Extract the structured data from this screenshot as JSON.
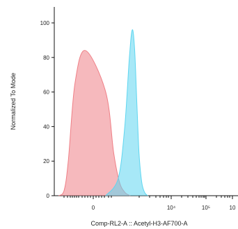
{
  "chart_data": {
    "type": "area",
    "xlabel": "Comp-RL2-A :: Acetyl-H3-AF700-A",
    "ylabel": "Normalized To Mode",
    "ylim": [
      0,
      100
    ],
    "yticks": [
      0,
      20,
      40,
      60,
      80,
      100
    ],
    "xscale": "biexponential",
    "xticks": [
      "0",
      "10⁴",
      "10⁵",
      "10"
    ],
    "grid": false,
    "series": [
      {
        "color": "#ef7f86",
        "x": [
          -2000,
          -1200,
          -800,
          -400,
          -100,
          200,
          500,
          900,
          1500,
          2500
        ],
        "values": [
          0,
          3,
          20,
          65,
          84,
          60,
          25,
          8,
          2,
          0
        ]
      },
      {
        "color": "#5fd6f0",
        "x": [
          200,
          800,
          1500,
          2300,
          3000,
          3700,
          4500,
          5500,
          7000,
          9000,
          12000
        ],
        "values": [
          0,
          10,
          40,
          80,
          96,
          85,
          55,
          25,
          8,
          2,
          0
        ]
      }
    ]
  }
}
